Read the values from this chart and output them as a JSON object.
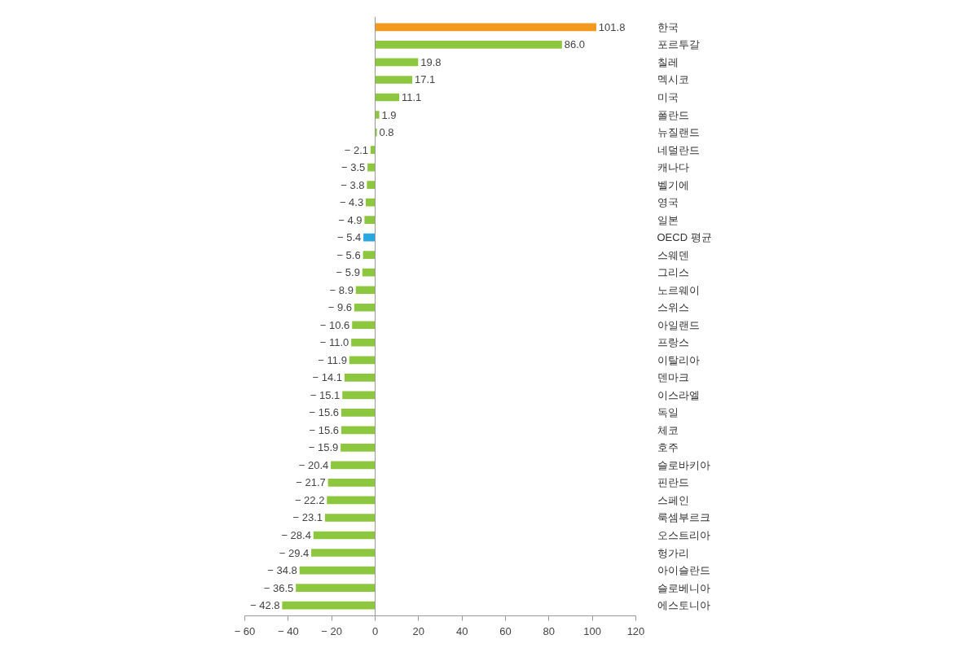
{
  "chart_data": {
    "type": "bar",
    "orientation": "horizontal",
    "categories": [
      "한국",
      "포르투갈",
      "칠레",
      "멕시코",
      "미국",
      "폴란드",
      "뉴질랜드",
      "네덜란드",
      "캐나다",
      "벨기에",
      "영국",
      "일본",
      "OECD  평균",
      "스웨덴",
      "그리스",
      "노르웨이",
      "스위스",
      "아일랜드",
      "프랑스",
      "이탈리아",
      "덴마크",
      "이스라엘",
      "독일",
      "체코",
      "호주",
      "슬로바키아",
      "핀란드",
      "스페인",
      "룩셈부르크",
      "오스트리아",
      "헝가리",
      "아이슬란드",
      "슬로베니아",
      "에스토니아"
    ],
    "values": [
      101.8,
      86.0,
      19.8,
      17.1,
      11.1,
      1.9,
      0.8,
      -2.1,
      -3.5,
      -3.8,
      -4.3,
      -4.9,
      -5.4,
      -5.6,
      -5.9,
      -8.9,
      -9.6,
      -10.6,
      -11.0,
      -11.9,
      -14.1,
      -15.1,
      -15.6,
      -15.6,
      -15.9,
      -20.4,
      -21.7,
      -22.2,
      -23.1,
      -28.4,
      -29.4,
      -34.8,
      -36.5,
      -42.8
    ],
    "colors": [
      "#f39a1e",
      "#8dc63f",
      "#8dc63f",
      "#8dc63f",
      "#8dc63f",
      "#8dc63f",
      "#8dc63f",
      "#8dc63f",
      "#8dc63f",
      "#8dc63f",
      "#8dc63f",
      "#8dc63f",
      "#29a8df",
      "#8dc63f",
      "#8dc63f",
      "#8dc63f",
      "#8dc63f",
      "#8dc63f",
      "#8dc63f",
      "#8dc63f",
      "#8dc63f",
      "#8dc63f",
      "#8dc63f",
      "#8dc63f",
      "#8dc63f",
      "#8dc63f",
      "#8dc63f",
      "#8dc63f",
      "#8dc63f",
      "#8dc63f",
      "#8dc63f",
      "#8dc63f",
      "#8dc63f",
      "#8dc63f"
    ],
    "value_labels": [
      "101.8",
      "86.0",
      "19.8",
      "17.1",
      "11.1",
      "1.9",
      "0.8",
      "− 2.1",
      "− 3.5",
      "− 3.8",
      "− 4.3",
      "− 4.9",
      "− 5.4",
      "− 5.6",
      "− 5.9",
      "− 8.9",
      "− 9.6",
      "− 10.6",
      "− 11.0",
      "− 11.9",
      "− 14.1",
      "− 15.1",
      "− 15.6",
      "− 15.6",
      "− 15.9",
      "− 20.4",
      "− 21.7",
      "− 22.2",
      "− 23.1",
      "− 28.4",
      "− 29.4",
      "− 34.8",
      "− 36.5",
      "− 42.8"
    ],
    "xlim": [
      -60,
      120
    ],
    "xticks": [
      {
        "value": -60,
        "label": "− 60"
      },
      {
        "value": -40,
        "label": "− 40"
      },
      {
        "value": -20,
        "label": "− 20"
      },
      0,
      20,
      40,
      60,
      80,
      100,
      120
    ],
    "data_labels": true
  }
}
